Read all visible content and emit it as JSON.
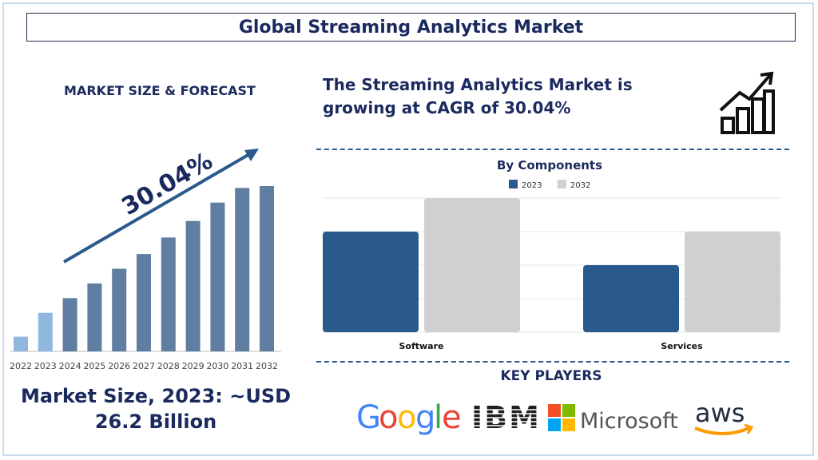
{
  "title": "Global Streaming Analytics Market",
  "left_heading": "MARKET SIZE & FORECAST",
  "cagr_label": "30.04%",
  "cagr_statement": "The Streaming Analytics Market is growing at CAGR of 30.04%",
  "market_size_text": "Market Size, 2023: ~USD 26.2 Billion",
  "key_players_heading": "KEY PLAYERS",
  "key_players": [
    "Google",
    "IBM",
    "Microsoft",
    "aws"
  ],
  "icon": "growth-chart-icon",
  "colors": {
    "navy": "#1b2a5e",
    "forecast_bar": "#5f7ea1",
    "highlight_bar": "#8fb7df",
    "series_2023": "#2a5a8c",
    "series_2032": "#d0d0d0"
  },
  "chart_data": [
    {
      "type": "bar",
      "title": "",
      "categories": [
        "2022",
        "2023",
        "2024",
        "2025",
        "2026",
        "2027",
        "2028",
        "2029",
        "2030",
        "2031",
        "2032"
      ],
      "values": [
        8,
        21,
        29,
        37,
        45,
        53,
        62,
        71,
        81,
        89,
        90
      ],
      "value_scale": "relative index (no axis values printed)",
      "highlighted": [
        "2022",
        "2023"
      ],
      "annotation": "30.04%",
      "ylim": [
        0,
        100
      ]
    },
    {
      "type": "bar",
      "title": "By Components",
      "categories": [
        "Software",
        "Services"
      ],
      "series": [
        {
          "name": "2023",
          "values": [
            3,
            2
          ]
        },
        {
          "name": "2032",
          "values": [
            4,
            3
          ]
        }
      ],
      "ylim": [
        0,
        4
      ],
      "grid": true,
      "legend": "top-center"
    }
  ]
}
